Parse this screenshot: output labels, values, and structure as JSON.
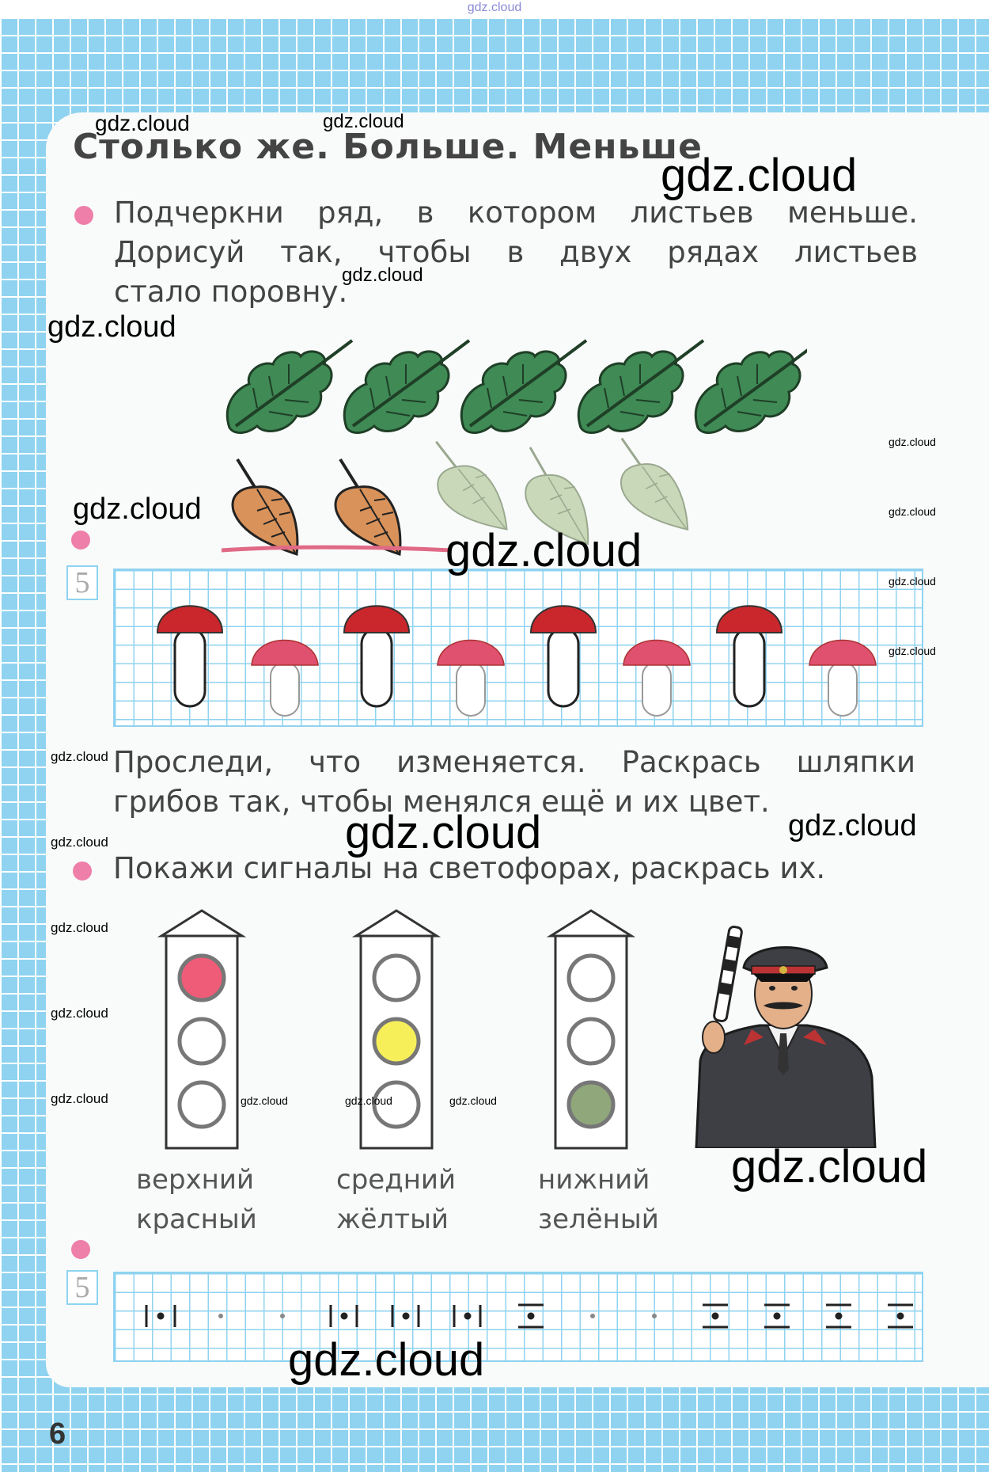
{
  "header_watermark": "gdz.cloud",
  "title": "Столько же. Больше. Меньше",
  "task1": {
    "lines": [
      "Подчеркни ряд, в котором листьев меньше.",
      "Дорисуй так, чтобы в двух рядах листьев",
      "стало поровну."
    ]
  },
  "cell_numbers": {
    "first": "5",
    "second": "5"
  },
  "task2": {
    "lines": [
      "Проследи, что изменяется. Раскрась шляпки",
      "грибов так, чтобы менялся ещё и их цвет."
    ]
  },
  "task3": {
    "text": "Покажи сигналы на светофорах, раскрась их."
  },
  "traffic_lights": [
    {
      "caption_1": "верхний",
      "caption_2": "красный",
      "lit": "top",
      "color": "#ef5c78"
    },
    {
      "caption_1": "средний",
      "caption_2": "жёлтый",
      "lit": "middle",
      "color": "#f6ef5a"
    },
    {
      "caption_1": "нижний",
      "caption_2": "зелёный",
      "lit": "bottom",
      "color": "#8fa77a"
    }
  ],
  "page_number": "6",
  "watermark": "gdz.cloud",
  "colors": {
    "background_blue": "#8fd3f0",
    "bullet_pink": "#ee7fa8",
    "dark_leaf": "#3f8a55",
    "orange_leaf": "#d9925a",
    "mushroom_red": "#c9272c",
    "mushroom_pink": "#e0506f"
  }
}
